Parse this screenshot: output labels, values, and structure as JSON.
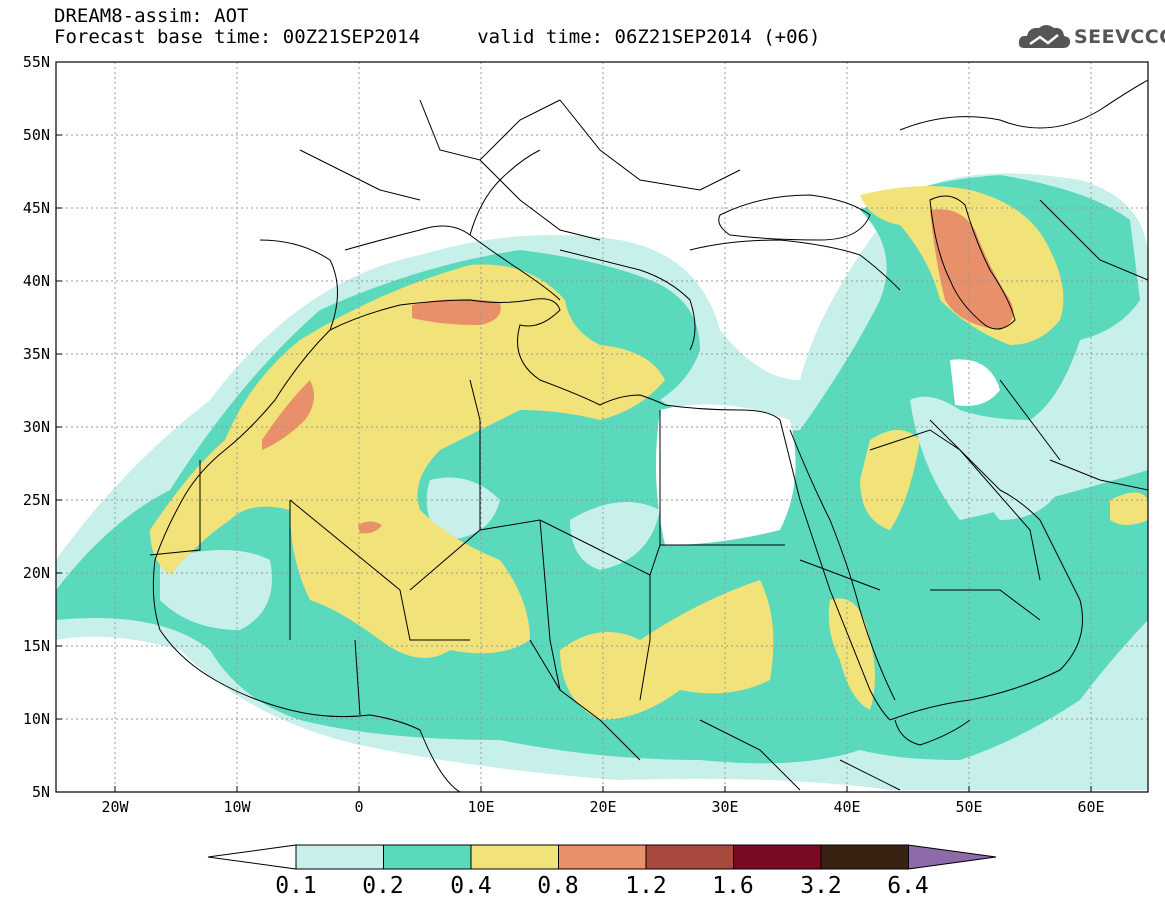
{
  "header": {
    "line1": "DREAM8-assim: AOT",
    "line2": "Forecast base time: 00Z21SEP2014     valid time: 06Z21SEP2014 (+06)"
  },
  "logo": {
    "text": "SEEVCCC",
    "icon": "cloud-icon"
  },
  "axes": {
    "lat_labels": [
      "55N",
      "50N",
      "45N",
      "40N",
      "35N",
      "30N",
      "25N",
      "20N",
      "15N",
      "10N",
      "5N"
    ],
    "lon_labels": [
      "20W",
      "10W",
      "0",
      "10E",
      "20E",
      "30E",
      "40E",
      "50E",
      "60E"
    ]
  },
  "colorbar": {
    "labels": [
      "0.1",
      "0.2",
      "0.4",
      "0.8",
      "1.2",
      "1.6",
      "3.2",
      "6.4"
    ],
    "colors": [
      "#c8f0ea",
      "#5ad9bc",
      "#f2e27a",
      "#e8906a",
      "#a8493e",
      "#7a0a22",
      "#3a2212"
    ],
    "under_color": "#ffffff",
    "over_color": "#8e6ba8"
  },
  "palette": {
    "land_outline": "#000000",
    "grid": "#999999"
  }
}
